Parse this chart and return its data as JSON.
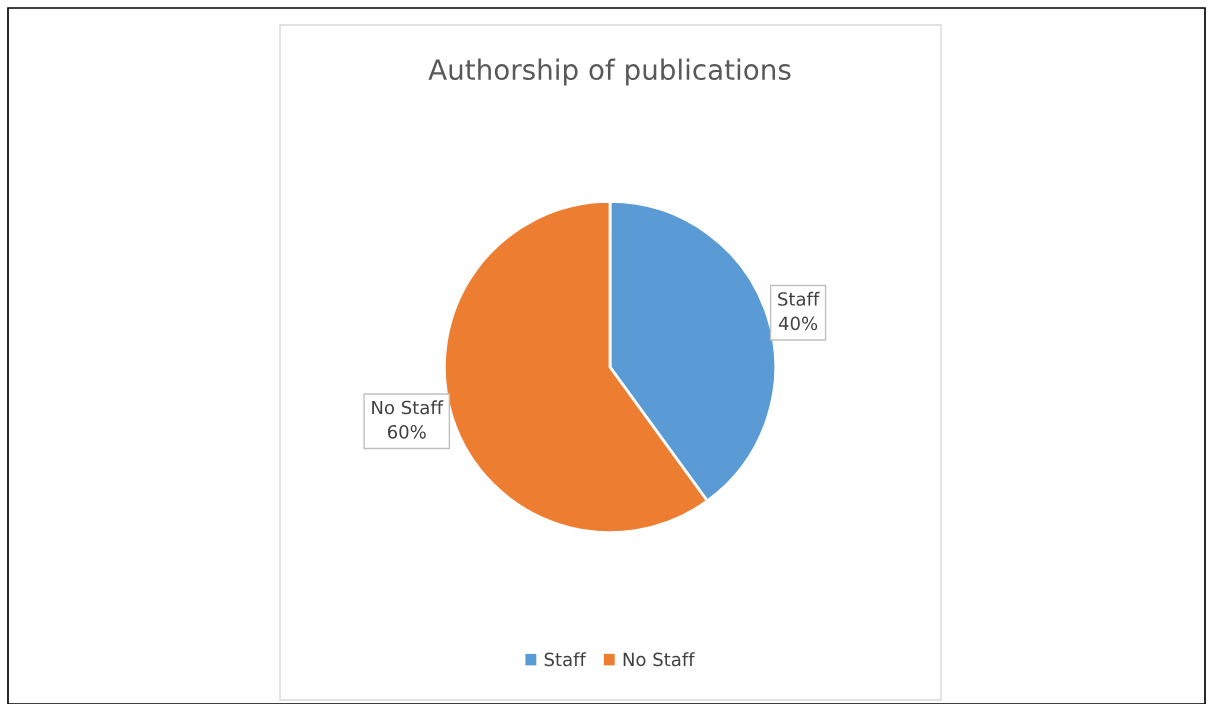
{
  "chart_data": {
    "type": "pie",
    "title": "Authorship of publications",
    "categories": [
      "Staff",
      "No Staff"
    ],
    "values": [
      40,
      60
    ],
    "colors": [
      "#5b9bd5",
      "#ed7d31"
    ],
    "value_labels": [
      "40%",
      "60%"
    ],
    "legend": "bottom"
  }
}
